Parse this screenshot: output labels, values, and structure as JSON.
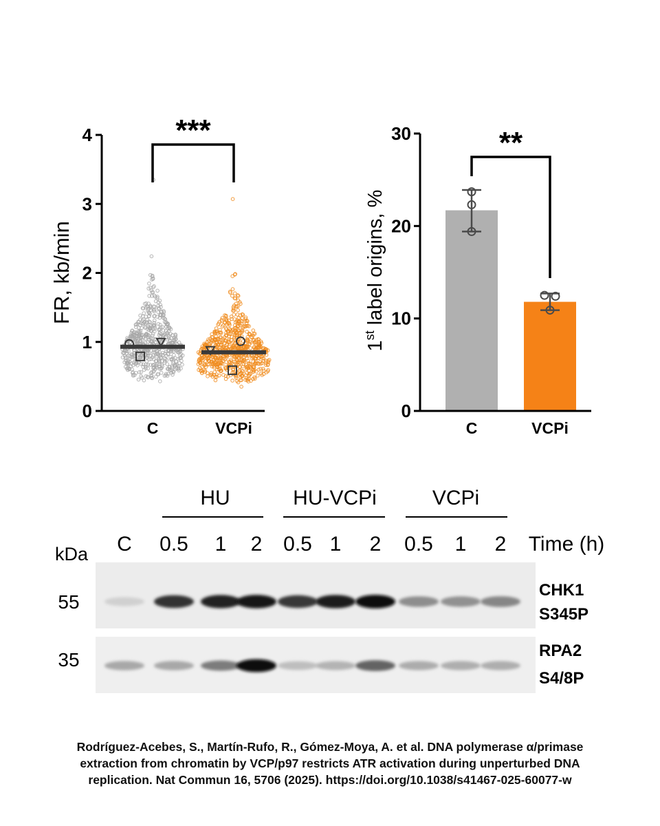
{
  "chart_data": [
    {
      "type": "scatter",
      "panel": "fork-rate",
      "categories": [
        "C",
        "VCPi"
      ],
      "ylabel": "FR, kb/min",
      "ylim": [
        0,
        4
      ],
      "yticks": [
        "0",
        "1",
        "2",
        "3",
        "4"
      ],
      "significance": "***",
      "means": [
        0.93,
        0.85
      ],
      "max_values": [
        3.35,
        3.07
      ],
      "replicates": [
        {
          "name": "circle",
          "values": [
            0.97,
            1.01
          ]
        },
        {
          "name": "square",
          "values": [
            0.79,
            0.59
          ]
        },
        {
          "name": "triangle",
          "values": [
            1.0,
            0.88
          ]
        }
      ],
      "colors": {
        "C": "#a8a8a8",
        "VCPi": "#f08c1e",
        "mean": "#3a3a3a"
      }
    },
    {
      "type": "bar",
      "panel": "origins",
      "categories": [
        "C",
        "VCPi"
      ],
      "values": [
        21.7,
        11.8
      ],
      "errors": [
        [
          19.4,
          23.9
        ],
        [
          10.9,
          12.7
        ]
      ],
      "points": [
        [
          23.7,
          22.3,
          19.4
        ],
        [
          12.5,
          12.4,
          10.9
        ]
      ],
      "ylabel_base": "1",
      "ylabel_sup": "st",
      "ylabel_rest": " label origins, %",
      "ylim": [
        0,
        30
      ],
      "yticks": [
        "0",
        "10",
        "20",
        "30"
      ],
      "significance": "**",
      "colors": {
        "C": "#b0b0b0",
        "VCPi": "#f58217"
      }
    }
  ],
  "western_blot": {
    "groups": [
      "HU",
      "HU-VCPi",
      "VCPi"
    ],
    "lanes": [
      "C",
      "0.5",
      "1",
      "2",
      "0.5",
      "1",
      "2",
      "0.5",
      "1",
      "2"
    ],
    "time_label": "Time (h)",
    "kda_label": "kDa",
    "markers": [
      "55",
      "35"
    ],
    "blots": [
      {
        "label_line1": "CHK1",
        "label_line2": "S345P",
        "intensities": [
          0.12,
          0.82,
          0.9,
          0.95,
          0.8,
          0.92,
          0.97,
          0.42,
          0.4,
          0.45
        ]
      },
      {
        "label_line1": "RPA2",
        "label_line2": "S4/8P",
        "intensities": [
          0.3,
          0.3,
          0.5,
          0.98,
          0.2,
          0.25,
          0.6,
          0.28,
          0.27,
          0.27
        ]
      }
    ]
  },
  "citation": {
    "line1": "Rodríguez-Acebes, S., Martín-Rufo, R., Gómez-Moya, A. et al. DNA polymerase α/primase",
    "line2": "extraction from chromatin by VCP/p97 restricts ATR activation during unperturbed DNA",
    "line3": "replication. Nat Commun 16, 5706 (2025). https://doi.org/10.1038/s41467-025-60077-w"
  }
}
